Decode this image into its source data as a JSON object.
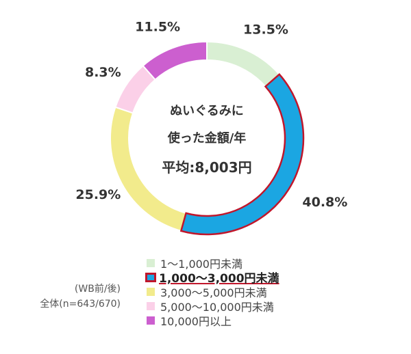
{
  "chart_data": {
    "type": "pie",
    "variant": "donut",
    "center_text": [
      "ぬいぐるみに",
      "使った金額/年",
      "平均:8,003円"
    ],
    "slices": [
      {
        "label": "1～1,000円未満",
        "value": 13.5,
        "value_label": "13.5%",
        "color": "#d9efd3"
      },
      {
        "label": "1,000～3,000円未満",
        "value": 40.8,
        "value_label": "40.8%",
        "color": "#1ba6e2",
        "highlight": true,
        "highlight_color": "#c0162b"
      },
      {
        "label": "3,000～5,000円未満",
        "value": 25.9,
        "value_label": "25.9%",
        "color": "#f2eb8c"
      },
      {
        "label": "5,000～10,000円未満",
        "value": 8.3,
        "value_label": "8.3%",
        "color": "#fbd0e8"
      },
      {
        "label": "10,000円以上",
        "value": 11.5,
        "value_label": "11.5%",
        "color": "#cc5fcf"
      }
    ],
    "legend_position": "bottom"
  },
  "note": {
    "line1": "(WB前/後)",
    "line2": "全体(n=643/670)"
  }
}
